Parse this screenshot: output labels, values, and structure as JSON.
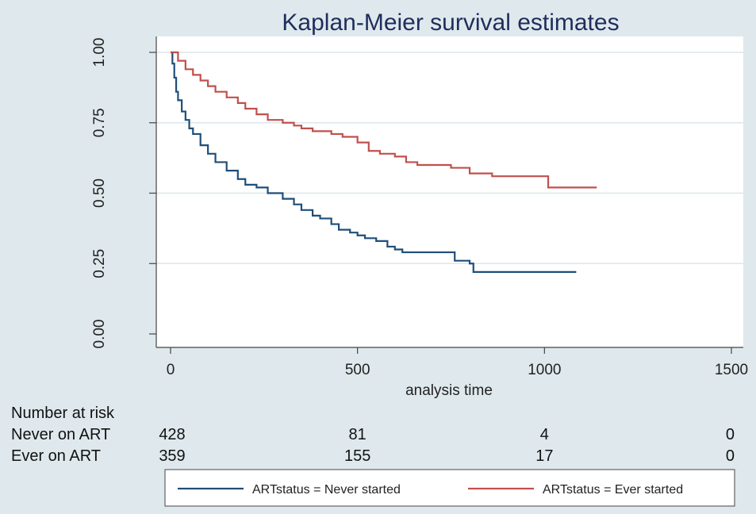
{
  "chart_data": {
    "type": "line",
    "title": "Kaplan-Meier survival estimates",
    "xlabel": "analysis time",
    "ylabel": "",
    "xlim": [
      0,
      1500
    ],
    "ylim": [
      0,
      1
    ],
    "x_ticks": [
      "0",
      "500",
      "1000",
      "1500"
    ],
    "y_ticks": [
      "0.00",
      "0.25",
      "0.50",
      "0.75",
      "1.00"
    ],
    "x_tick_values": [
      0,
      500,
      1000,
      1500
    ],
    "y_tick_values": [
      0,
      0.25,
      0.5,
      0.75,
      1.0
    ],
    "grid": "horizontal",
    "legend_position": "bottom",
    "series": [
      {
        "name": "ARTstatus = Never started",
        "color": "#1f4e79",
        "x": [
          0,
          5,
          10,
          15,
          20,
          30,
          40,
          50,
          60,
          80,
          100,
          120,
          150,
          180,
          200,
          230,
          260,
          300,
          330,
          350,
          380,
          400,
          430,
          450,
          480,
          500,
          520,
          550,
          580,
          600,
          620,
          650,
          700,
          750,
          760,
          790,
          800,
          810,
          850,
          900,
          950,
          1000,
          1050,
          1085
        ],
        "y": [
          1.0,
          0.96,
          0.91,
          0.86,
          0.83,
          0.79,
          0.76,
          0.73,
          0.71,
          0.67,
          0.64,
          0.61,
          0.58,
          0.55,
          0.53,
          0.52,
          0.5,
          0.48,
          0.46,
          0.44,
          0.42,
          0.41,
          0.39,
          0.37,
          0.36,
          0.35,
          0.34,
          0.33,
          0.31,
          0.3,
          0.29,
          0.29,
          0.29,
          0.29,
          0.26,
          0.26,
          0.25,
          0.22,
          0.22,
          0.22,
          0.22,
          0.22,
          0.22,
          0.22
        ]
      },
      {
        "name": "ARTstatus = Ever started",
        "color": "#c0504d",
        "x": [
          0,
          20,
          40,
          60,
          80,
          100,
          120,
          150,
          180,
          200,
          230,
          260,
          300,
          330,
          350,
          380,
          400,
          430,
          460,
          500,
          530,
          560,
          600,
          630,
          660,
          700,
          750,
          800,
          830,
          860,
          900,
          950,
          1000,
          1010,
          1050,
          1100,
          1140
        ],
        "y": [
          1.0,
          0.97,
          0.94,
          0.92,
          0.9,
          0.88,
          0.86,
          0.84,
          0.82,
          0.8,
          0.78,
          0.76,
          0.75,
          0.74,
          0.73,
          0.72,
          0.72,
          0.71,
          0.7,
          0.68,
          0.65,
          0.64,
          0.63,
          0.61,
          0.6,
          0.6,
          0.59,
          0.57,
          0.57,
          0.56,
          0.56,
          0.56,
          0.56,
          0.52,
          0.52,
          0.52,
          0.52
        ]
      }
    ],
    "risk_table": {
      "header": "Number at risk",
      "rows": [
        {
          "label": "Never on ART",
          "values": [
            "428",
            "81",
            "4",
            "0"
          ]
        },
        {
          "label": "Ever on ART",
          "values": [
            "359",
            "155",
            "17",
            "0"
          ]
        }
      ]
    }
  }
}
